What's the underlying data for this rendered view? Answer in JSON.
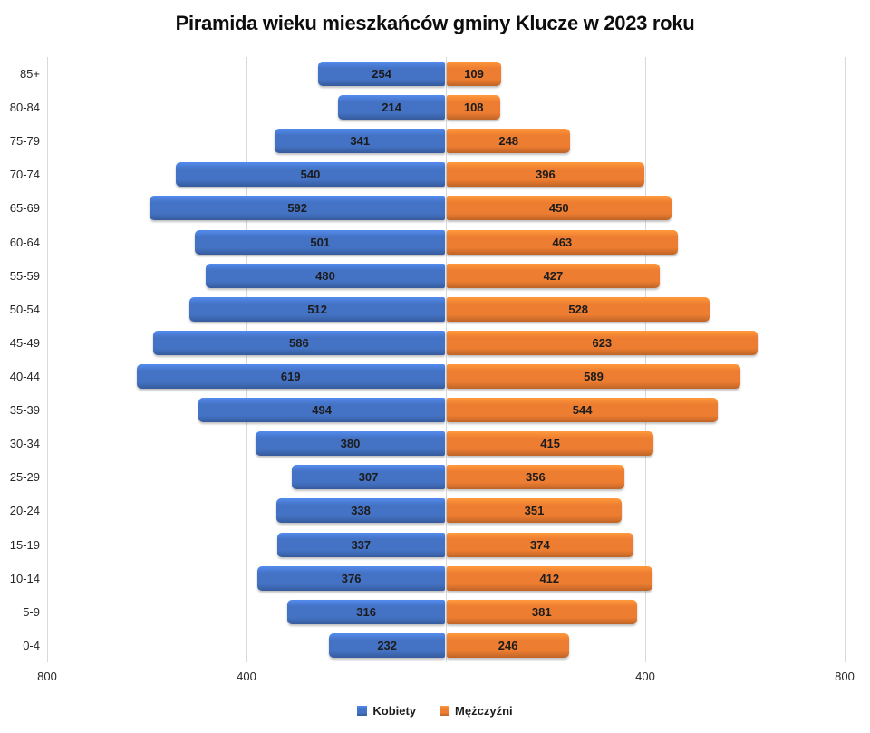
{
  "title": "Piramida wieku mieszkańców gminy Klucze w 2023 roku",
  "chart_data": {
    "type": "bar",
    "variant": "population-pyramid",
    "title": "Piramida wieku mieszkańców gminy Klucze w 2023 roku",
    "categories": [
      "85+",
      "80-84",
      "75-79",
      "70-74",
      "65-69",
      "60-64",
      "55-59",
      "50-54",
      "45-49",
      "40-44",
      "35-39",
      "30-34",
      "25-29",
      "20-24",
      "15-19",
      "10-14",
      "5-9",
      "0-4"
    ],
    "series": [
      {
        "name": "Kobiety",
        "side": "left",
        "color": "#4472C4",
        "values": [
          254,
          214,
          341,
          540,
          592,
          501,
          480,
          512,
          586,
          619,
          494,
          380,
          307,
          338,
          337,
          376,
          316,
          232
        ]
      },
      {
        "name": "Mężczyźni",
        "side": "right",
        "color": "#ED7D31",
        "values": [
          109,
          108,
          248,
          396,
          450,
          463,
          427,
          528,
          623,
          589,
          544,
          415,
          356,
          351,
          374,
          412,
          381,
          246
        ]
      }
    ],
    "x_axis": {
      "min": -800,
      "max": 800,
      "center_value": 0,
      "tick_labels": [
        "800",
        "400",
        "400",
        "800"
      ],
      "tick_positions": [
        -800,
        -400,
        400,
        800
      ],
      "gridline_positions": [
        -800,
        -400,
        0,
        400,
        800
      ],
      "grid": true,
      "gridline_color": "#D9D9D9"
    },
    "legend": {
      "position": "bottom",
      "entries": [
        {
          "label": "Kobiety",
          "color": "#4472C4"
        },
        {
          "label": "Mężczyźni",
          "color": "#ED7D31"
        }
      ]
    },
    "bar_label_color": "#1C1C1C"
  }
}
